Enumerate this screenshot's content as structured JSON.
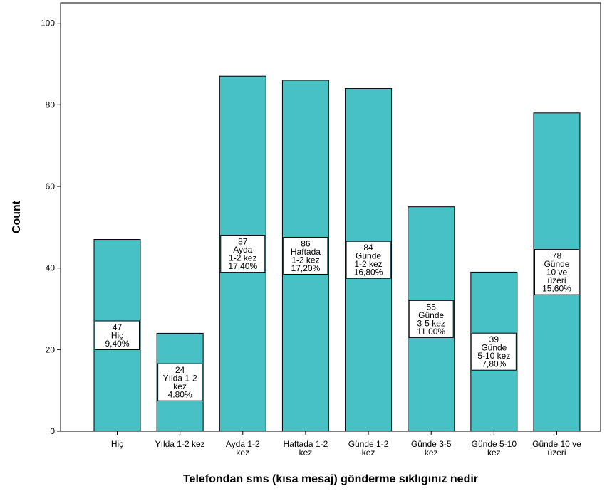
{
  "chart_data": {
    "type": "bar",
    "xlabel": "Telefondan sms (kısa mesaj) gönderme sıklıgınız nedir",
    "ylabel": "Count",
    "ylim": [
      0,
      105
    ],
    "yticks": [
      0,
      20,
      40,
      60,
      80,
      100
    ],
    "grid": false,
    "bar_color": "#47c1c4",
    "bar_stroke": "#000000",
    "categories": [
      [
        "Hiç"
      ],
      [
        "Yılda 1-2 kez"
      ],
      [
        "Ayda 1-2",
        "kez"
      ],
      [
        "Haftada 1-2",
        "kez"
      ],
      [
        "Günde 1-2",
        "kez"
      ],
      [
        "Günde 3-5",
        "kez"
      ],
      [
        "Günde 5-10",
        "kez"
      ],
      [
        "Günde 10 ve",
        "üzeri"
      ]
    ],
    "values": [
      47,
      24,
      87,
      86,
      84,
      55,
      39,
      78
    ],
    "data_labels": [
      [
        "47",
        "Hiç",
        "9,40%"
      ],
      [
        "24",
        "Yılda 1-2",
        "kez",
        "4,80%"
      ],
      [
        "87",
        "Ayda",
        "1-2 kez",
        "17,40%"
      ],
      [
        "86",
        "Haftada",
        "1-2 kez",
        "17,20%"
      ],
      [
        "84",
        "Günde",
        "1-2 kez",
        "16,80%"
      ],
      [
        "55",
        "Günde",
        "3-5 kez",
        "11,00%"
      ],
      [
        "39",
        "Günde",
        "5-10 kez",
        "7,80%"
      ],
      [
        "78",
        "Günde",
        "10 ve",
        "üzeri",
        "15,60%"
      ]
    ]
  }
}
